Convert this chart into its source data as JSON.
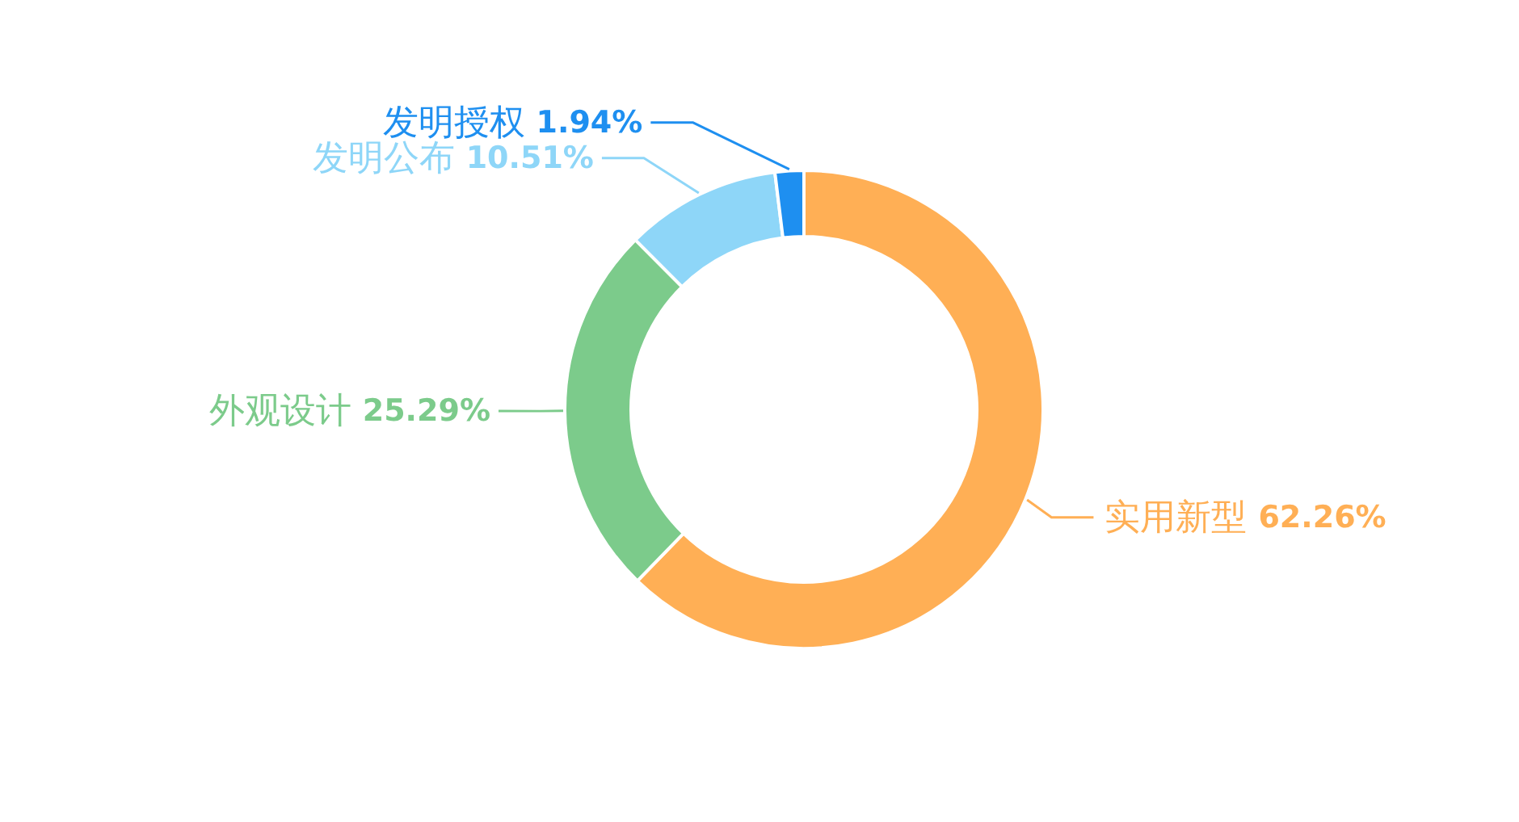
{
  "chart_data": {
    "type": "donut",
    "categories": [
      "实用新型",
      "外观设计",
      "发明公布",
      "发明授权"
    ],
    "values": [
      62.26,
      25.29,
      10.51,
      1.94
    ],
    "colors": [
      "#ffaf55",
      "#7ccb8b",
      "#8ed6f8",
      "#1e8ff0"
    ],
    "value_labels": [
      "62.26%",
      "25.29%",
      "10.51%",
      "1.94%"
    ]
  }
}
